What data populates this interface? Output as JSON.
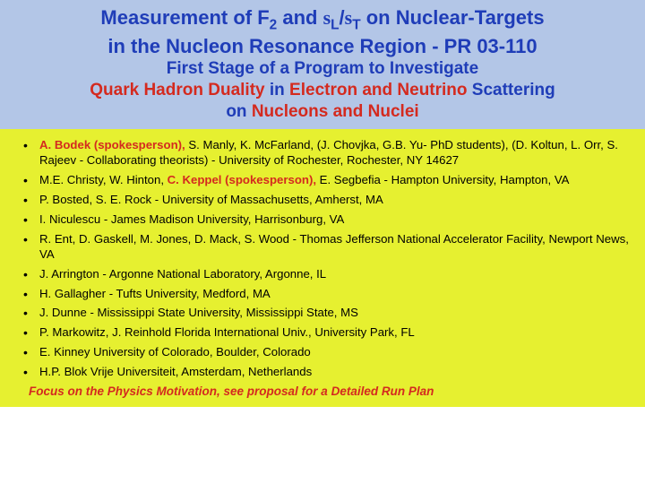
{
  "colors": {
    "header_bg": "#b3c6e7",
    "content_bg": "#e6f030",
    "blue_text": "#1f3db8",
    "red_text": "#d42a1f",
    "black_text": "#000000"
  },
  "header": {
    "l1a": "Measurement of  F",
    "l1b": "2",
    "l1c": "  and ",
    "l1d_sigma1": "s",
    "l1e": "L",
    "l1f": "/",
    "l1g_sigma2": "s",
    "l1h": "T",
    "l1i": " on Nuclear-Targets",
    "l2": "in the Nucleon Resonance Region - PR 03-110",
    "l3": "First Stage of a Program to Investigate",
    "l4a": "Quark Hadron Duality",
    "l4b": " in ",
    "l4c": "Electron and Neutrino",
    "l4d": " Scattering",
    "l5a": "on ",
    "l5b": "Nucleons and Nuclei"
  },
  "authors": [
    {
      "red": "A. Bodek (spokesperson), ",
      "rest": "S. Manly, K. McFarland,  (J. Chovjka, G.B. Yu- PhD students), (D. Koltun, L. Orr, S. Rajeev - Collaborating theorists)  - University of Rochester, Rochester, NY 14627"
    },
    {
      "pre": "M.E. Christy, W. Hinton, ",
      "red": "C. Keppel (spokesperson), ",
      "rest": "E. Segbefia - Hampton University, Hampton, VA"
    },
    {
      "rest": "P. Bosted, S. E. Rock -   University of Massachusetts, Amherst, MA"
    },
    {
      "rest": "I. Niculescu -  James Madison University, Harrisonburg, VA"
    },
    {
      "rest": "R. Ent, D. Gaskell, M. Jones, D. Mack, S. Wood - Thomas Jefferson National Accelerator Facility, Newport News, VA"
    },
    {
      "rest": "J. Arrington - Argonne National Laboratory, Argonne, IL"
    },
    {
      "rest": "H. Gallagher - Tufts University, Medford, MA"
    },
    {
      "rest": "J. Dunne - Mississippi State University, Mississippi State, MS"
    },
    {
      "rest": "P. Markowitz, J. Reinhold Florida International Univ., University Park, FL"
    },
    {
      "rest": "E. Kinney University of Colorado, Boulder, Colorado"
    },
    {
      "rest": "H.P. Blok Vrije Universiteit, Amsterdam, Netherlands"
    }
  ],
  "footer": "Focus on the Physics Motivation, see proposal for a Detailed Run Plan"
}
